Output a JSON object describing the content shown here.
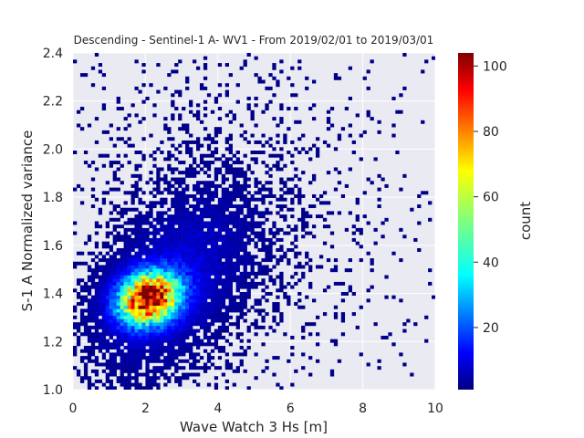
{
  "chart_data": {
    "type": "heatmap",
    "title": "Descending - Sentinel-1 A- WV1 - From 2019/02/01 to 2019/03/01",
    "xlabel": "Wave Watch 3 Hs [m]",
    "ylabel": "S-1 A Normalized variance",
    "xlim": [
      0,
      10
    ],
    "ylim": [
      1.0,
      2.4
    ],
    "x_ticks": [
      "0",
      "2",
      "4",
      "6",
      "8",
      "10"
    ],
    "y_ticks": [
      "1.0",
      "1.2",
      "1.4",
      "1.6",
      "1.8",
      "2.0",
      "2.2",
      "2.4"
    ],
    "grid": true,
    "colormap": "jet",
    "colorbar": {
      "label": "count",
      "range": [
        1,
        104
      ],
      "ticks": [
        "20",
        "40",
        "60",
        "80",
        "100"
      ]
    },
    "peak": {
      "x": 2.1,
      "y": 1.4,
      "count": 104
    },
    "background_color": "#eaeaf2"
  }
}
